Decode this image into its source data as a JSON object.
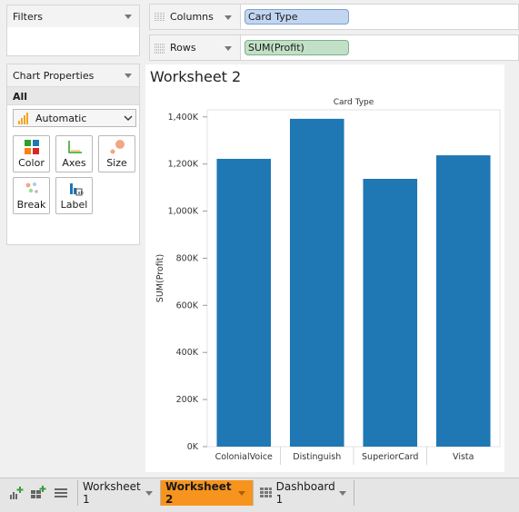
{
  "filters": {
    "title": "Filters"
  },
  "chart_properties": {
    "title": "Chart Properties",
    "scope": "All",
    "mark_type": "Automatic",
    "buttons": [
      {
        "label": "Color",
        "icon": "color-grid-icon"
      },
      {
        "label": "Axes",
        "icon": "axes-icon"
      },
      {
        "label": "Size",
        "icon": "size-circles-icon"
      },
      {
        "label": "Break",
        "icon": "break-dots-icon"
      },
      {
        "label": "Label",
        "icon": "label-icon"
      }
    ]
  },
  "shelves": {
    "columns": {
      "label": "Columns",
      "pill": "Card Type"
    },
    "rows": {
      "label": "Rows",
      "pill": "SUM(Profit)"
    }
  },
  "worksheet": {
    "title": "Worksheet 2"
  },
  "chart_data": {
    "type": "bar",
    "title": "Card Type",
    "xlabel": "",
    "ylabel": "SUM(Profit)",
    "categories": [
      "ColonialVoice",
      "Distinguish",
      "SuperiorCard",
      "Vista"
    ],
    "values": [
      1222000,
      1392000,
      1137000,
      1237000
    ],
    "ylim": [
      0,
      1430000
    ],
    "yticks": [
      0,
      200000,
      400000,
      600000,
      800000,
      1000000,
      1200000,
      1400000
    ],
    "ytick_labels": [
      "0K",
      "200K",
      "400K",
      "600K",
      "800K",
      "1,000K",
      "1,200K",
      "1,400K"
    ],
    "bar_color": "#1f77b4",
    "grid": false
  },
  "tabs": [
    {
      "label": "Worksheet 1",
      "active": false
    },
    {
      "label": "Worksheet 2",
      "active": true
    },
    {
      "label": "Dashboard 1",
      "active": false
    }
  ],
  "colors": {
    "accent_tab": "#f7941d",
    "pill_blue": "#c2d5f1",
    "pill_green": "#c2e0c7"
  }
}
